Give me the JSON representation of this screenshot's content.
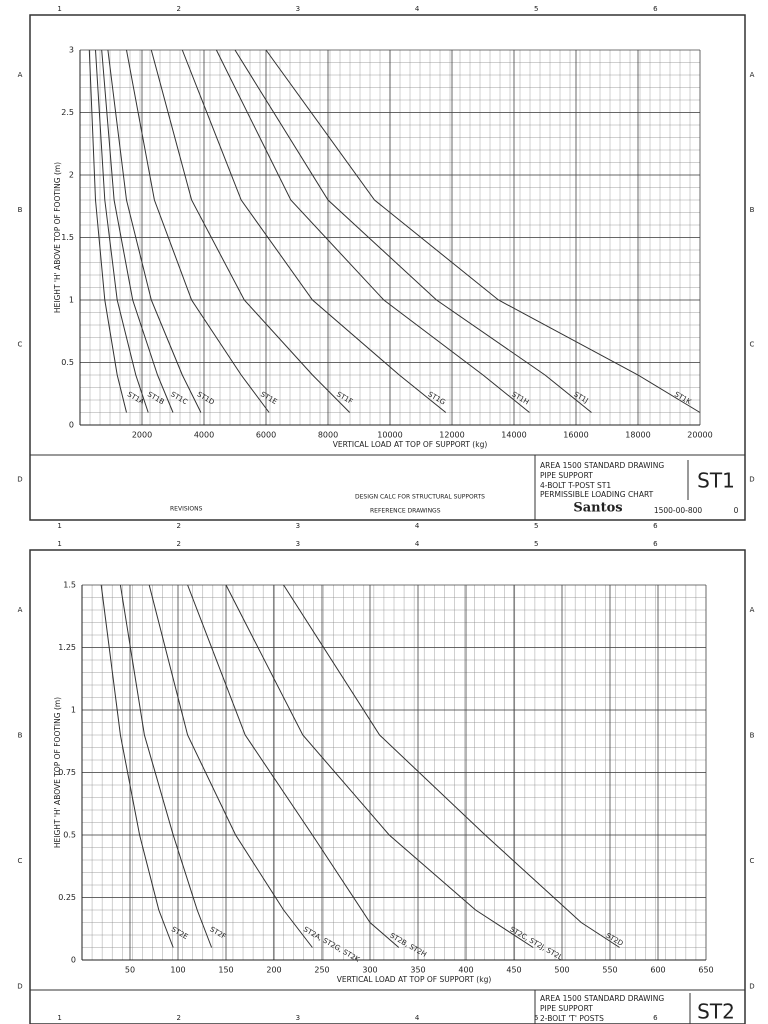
{
  "chart_data": [
    {
      "type": "line",
      "ylabel": "HEIGHT 'H' ABOVE TOP OF FOOTING (m)",
      "xlabel": "VERTICAL LOAD AT TOP OF SUPPORT (kg)",
      "xlim": [
        0,
        20000
      ],
      "xticks": [
        2000,
        4000,
        6000,
        8000,
        10000,
        12000,
        14000,
        16000,
        18000,
        20000
      ],
      "ylim": [
        0,
        3
      ],
      "yticks": [
        0,
        0.5,
        1,
        1.5,
        2,
        2.5,
        3
      ],
      "grid": true,
      "series": [
        {
          "name": "ST1A",
          "color": "#333",
          "x": [
            300,
            500,
            800,
            1200,
            1500
          ],
          "values": [
            3,
            1.8,
            1.0,
            0.4,
            0.1
          ]
        },
        {
          "name": "ST1B",
          "color": "#333",
          "x": [
            500,
            800,
            1200,
            1800,
            2200
          ],
          "values": [
            3,
            1.8,
            1.0,
            0.4,
            0.1
          ]
        },
        {
          "name": "ST1C",
          "color": "#333",
          "x": [
            700,
            1100,
            1700,
            2500,
            3000
          ],
          "values": [
            3,
            1.8,
            1.0,
            0.4,
            0.1
          ]
        },
        {
          "name": "ST1D",
          "color": "#333",
          "x": [
            900,
            1500,
            2300,
            3300,
            3900
          ],
          "values": [
            3,
            1.8,
            1.0,
            0.4,
            0.1
          ]
        },
        {
          "name": "ST1E",
          "color": "#333",
          "x": [
            1500,
            2400,
            3600,
            5200,
            6100
          ],
          "values": [
            3,
            1.8,
            1.0,
            0.4,
            0.1
          ]
        },
        {
          "name": "ST1F",
          "color": "#333",
          "x": [
            2300,
            3600,
            5300,
            7500,
            8700
          ],
          "values": [
            3,
            1.8,
            1.0,
            0.4,
            0.1
          ]
        },
        {
          "name": "ST1G",
          "color": "#333",
          "x": [
            3300,
            5200,
            7500,
            10300,
            11800
          ],
          "values": [
            3,
            1.8,
            1.0,
            0.4,
            0.1
          ]
        },
        {
          "name": "ST1H",
          "color": "#333",
          "x": [
            4400,
            6800,
            9800,
            13000,
            14500
          ],
          "values": [
            3,
            1.8,
            1.0,
            0.4,
            0.1
          ]
        },
        {
          "name": "ST1J",
          "color": "#333",
          "x": [
            5000,
            8000,
            11500,
            15000,
            16500
          ],
          "values": [
            3,
            1.8,
            1.0,
            0.4,
            0.1
          ]
        },
        {
          "name": "ST1K",
          "color": "#333",
          "x": [
            6000,
            9500,
            13500,
            18000,
            20000
          ],
          "values": [
            3,
            1.8,
            1.0,
            0.4,
            0.1
          ]
        }
      ],
      "title_block": [
        "AREA 1500 STANDARD DRAWING",
        "PIPE SUPPORT",
        "4-BOLT T-POST ST1",
        "PERMISSIBLE LOADING CHART"
      ],
      "drawing_code": "ST1",
      "company": "Santos",
      "drawing_number": "1500-00-800",
      "revision": "0",
      "design_note": "DESIGN CALC FOR STRUCTURAL SUPPORTS",
      "revisions_label": "REVISIONS",
      "reference_label": "REFERENCE DRAWINGS"
    },
    {
      "type": "line",
      "ylabel": "HEIGHT 'H' ABOVE TOP OF FOOTING (m)",
      "xlabel": "VERTICAL LOAD AT TOP OF SUPPORT (kg)",
      "xlim": [
        0,
        650
      ],
      "xticks": [
        50,
        100,
        150,
        200,
        250,
        300,
        350,
        400,
        450,
        500,
        550,
        600,
        650
      ],
      "ylim": [
        0,
        1.5
      ],
      "yticks": [
        0,
        0.25,
        0.5,
        0.75,
        1,
        1.25,
        1.5
      ],
      "grid": true,
      "series": [
        {
          "name": "ST2E",
          "color": "#333",
          "x": [
            20,
            40,
            60,
            80,
            95
          ],
          "values": [
            1.5,
            0.9,
            0.5,
            0.2,
            0.05
          ]
        },
        {
          "name": "ST2F",
          "color": "#333",
          "x": [
            40,
            65,
            95,
            120,
            135
          ],
          "values": [
            1.5,
            0.9,
            0.5,
            0.2,
            0.05
          ]
        },
        {
          "name": "ST2A, ST2G, ST2K",
          "color": "#333",
          "x": [
            70,
            110,
            160,
            210,
            240
          ],
          "values": [
            1.5,
            0.9,
            0.5,
            0.2,
            0.05
          ]
        },
        {
          "name": "ST2B, ST2H",
          "color": "#333",
          "x": [
            110,
            170,
            240,
            300,
            330
          ],
          "values": [
            1.5,
            0.9,
            0.5,
            0.15,
            0.05
          ]
        },
        {
          "name": "ST2C, ST2J, ST2L",
          "color": "#333",
          "x": [
            150,
            230,
            320,
            410,
            470
          ],
          "values": [
            1.5,
            0.9,
            0.5,
            0.2,
            0.05
          ]
        },
        {
          "name": "ST2D",
          "color": "#333",
          "x": [
            210,
            310,
            420,
            520,
            560
          ],
          "values": [
            1.5,
            0.9,
            0.5,
            0.15,
            0.05
          ]
        }
      ],
      "title_block": [
        "AREA 1500 STANDARD DRAWING",
        "PIPE SUPPORT",
        "2-BOLT 'T' POSTS"
      ],
      "drawing_code": "ST2"
    }
  ],
  "border": {
    "columns": [
      "1",
      "2",
      "3",
      "4",
      "5",
      "6"
    ],
    "rows": [
      "A",
      "B",
      "C",
      "D"
    ]
  }
}
